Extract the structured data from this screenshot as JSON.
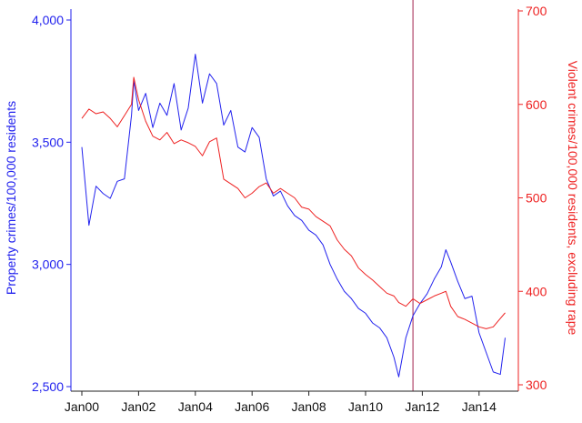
{
  "colors": {
    "left": "#2222ee",
    "right": "#ee2222",
    "vline": "#a0204a",
    "axis": "#222222"
  },
  "chart_data": {
    "type": "line",
    "title": "",
    "xlabel": "",
    "ylabel_left": "Property crimes/100,000 residents",
    "ylabel_right": "Violent crimes/100,000 residents, excluding rape",
    "xlim": [
      2000,
      2015
    ],
    "ylim_left": [
      2500,
      4000
    ],
    "ylim_right": [
      300,
      700
    ],
    "x_ticks": [
      {
        "value": 2000,
        "label": "Jan00"
      },
      {
        "value": 2002,
        "label": "Jan02"
      },
      {
        "value": 2004,
        "label": "Jan04"
      },
      {
        "value": 2006,
        "label": "Jan06"
      },
      {
        "value": 2008,
        "label": "Jan08"
      },
      {
        "value": 2010,
        "label": "Jan10"
      },
      {
        "value": 2012,
        "label": "Jan12"
      },
      {
        "value": 2014,
        "label": "Jan14"
      }
    ],
    "y_ticks_left": [
      {
        "value": 2500,
        "label": "2,500"
      },
      {
        "value": 3000,
        "label": "3,000"
      },
      {
        "value": 3500,
        "label": "3,500"
      },
      {
        "value": 4000,
        "label": "4,000"
      }
    ],
    "y_ticks_right": [
      {
        "value": 300,
        "label": "300"
      },
      {
        "value": 400,
        "label": "400"
      },
      {
        "value": 500,
        "label": "500"
      },
      {
        "value": 600,
        "label": "600"
      },
      {
        "value": 700,
        "label": "700"
      }
    ],
    "vertical_line_x": 2011.67,
    "grid": false,
    "series": [
      {
        "axis": "left",
        "color": "#2222ee",
        "points": [
          [
            2000.0,
            3480
          ],
          [
            2000.25,
            3160
          ],
          [
            2000.5,
            3320
          ],
          [
            2000.75,
            3290
          ],
          [
            2001.0,
            3270
          ],
          [
            2001.25,
            3340
          ],
          [
            2001.5,
            3350
          ],
          [
            2001.75,
            3610
          ],
          [
            2001.83,
            3750
          ],
          [
            2002.0,
            3630
          ],
          [
            2002.25,
            3700
          ],
          [
            2002.5,
            3560
          ],
          [
            2002.75,
            3660
          ],
          [
            2003.0,
            3610
          ],
          [
            2003.25,
            3740
          ],
          [
            2003.5,
            3550
          ],
          [
            2003.75,
            3640
          ],
          [
            2004.0,
            3860
          ],
          [
            2004.25,
            3660
          ],
          [
            2004.5,
            3780
          ],
          [
            2004.75,
            3740
          ],
          [
            2005.0,
            3570
          ],
          [
            2005.25,
            3630
          ],
          [
            2005.5,
            3480
          ],
          [
            2005.75,
            3460
          ],
          [
            2006.0,
            3560
          ],
          [
            2006.25,
            3520
          ],
          [
            2006.5,
            3350
          ],
          [
            2006.75,
            3280
          ],
          [
            2007.0,
            3300
          ],
          [
            2007.25,
            3240
          ],
          [
            2007.5,
            3200
          ],
          [
            2007.75,
            3180
          ],
          [
            2008.0,
            3140
          ],
          [
            2008.25,
            3120
          ],
          [
            2008.5,
            3080
          ],
          [
            2008.75,
            3000
          ],
          [
            2009.0,
            2940
          ],
          [
            2009.25,
            2890
          ],
          [
            2009.5,
            2860
          ],
          [
            2009.75,
            2820
          ],
          [
            2010.0,
            2800
          ],
          [
            2010.25,
            2760
          ],
          [
            2010.5,
            2740
          ],
          [
            2010.75,
            2700
          ],
          [
            2011.0,
            2620
          ],
          [
            2011.17,
            2540
          ],
          [
            2011.42,
            2700
          ],
          [
            2011.67,
            2790
          ],
          [
            2011.92,
            2840
          ],
          [
            2012.17,
            2880
          ],
          [
            2012.42,
            2940
          ],
          [
            2012.67,
            2990
          ],
          [
            2012.83,
            3060
          ],
          [
            2013.0,
            3010
          ],
          [
            2013.25,
            2930
          ],
          [
            2013.5,
            2860
          ],
          [
            2013.75,
            2870
          ],
          [
            2014.0,
            2720
          ],
          [
            2014.25,
            2640
          ],
          [
            2014.5,
            2560
          ],
          [
            2014.75,
            2550
          ],
          [
            2014.92,
            2700
          ]
        ]
      },
      {
        "axis": "right",
        "color": "#ee2222",
        "points": [
          [
            2000.0,
            585
          ],
          [
            2000.25,
            595
          ],
          [
            2000.5,
            590
          ],
          [
            2000.75,
            592
          ],
          [
            2001.0,
            585
          ],
          [
            2001.25,
            576
          ],
          [
            2001.5,
            588
          ],
          [
            2001.75,
            600
          ],
          [
            2001.83,
            629
          ],
          [
            2002.0,
            605
          ],
          [
            2002.25,
            582
          ],
          [
            2002.5,
            566
          ],
          [
            2002.75,
            562
          ],
          [
            2003.0,
            570
          ],
          [
            2003.25,
            558
          ],
          [
            2003.5,
            562
          ],
          [
            2003.75,
            559
          ],
          [
            2004.0,
            555
          ],
          [
            2004.25,
            545
          ],
          [
            2004.5,
            560
          ],
          [
            2004.75,
            564
          ],
          [
            2005.0,
            520
          ],
          [
            2005.25,
            515
          ],
          [
            2005.5,
            510
          ],
          [
            2005.75,
            500
          ],
          [
            2006.0,
            505
          ],
          [
            2006.25,
            512
          ],
          [
            2006.5,
            516
          ],
          [
            2006.75,
            505
          ],
          [
            2007.0,
            510
          ],
          [
            2007.25,
            505
          ],
          [
            2007.5,
            500
          ],
          [
            2007.75,
            490
          ],
          [
            2008.0,
            488
          ],
          [
            2008.25,
            480
          ],
          [
            2008.5,
            475
          ],
          [
            2008.75,
            470
          ],
          [
            2009.0,
            455
          ],
          [
            2009.25,
            445
          ],
          [
            2009.5,
            438
          ],
          [
            2009.75,
            425
          ],
          [
            2010.0,
            418
          ],
          [
            2010.25,
            412
          ],
          [
            2010.5,
            405
          ],
          [
            2010.75,
            398
          ],
          [
            2011.0,
            395
          ],
          [
            2011.17,
            388
          ],
          [
            2011.42,
            384
          ],
          [
            2011.67,
            392
          ],
          [
            2011.92,
            387
          ],
          [
            2012.17,
            391
          ],
          [
            2012.42,
            395
          ],
          [
            2012.67,
            398
          ],
          [
            2012.83,
            400
          ],
          [
            2013.0,
            384
          ],
          [
            2013.25,
            373
          ],
          [
            2013.5,
            370
          ],
          [
            2013.75,
            366
          ],
          [
            2014.0,
            362
          ],
          [
            2014.25,
            360
          ],
          [
            2014.5,
            362
          ],
          [
            2014.75,
            371
          ],
          [
            2014.92,
            377
          ]
        ]
      }
    ]
  }
}
